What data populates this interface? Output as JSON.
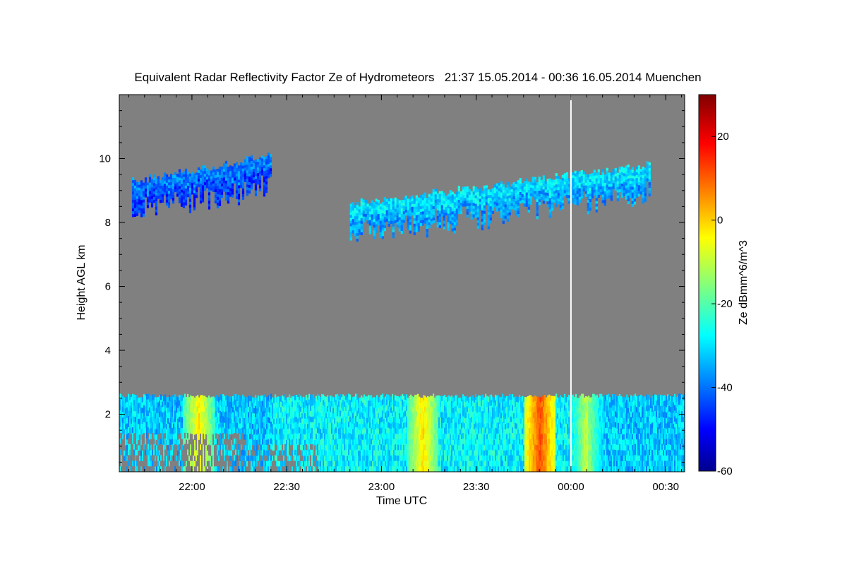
{
  "chart_data": {
    "type": "heatmap",
    "title": "Equivalent Radar Reflectivity Factor Ze of Hydrometeors   21:37 15.05.2014 - 00:36 16.05.2014 Muenchen",
    "xlabel": "Time UTC",
    "ylabel": "Height AGL km",
    "colorbar_label": "Ze dBmm^6/m^3",
    "x_range_minutes": [
      -143,
      36
    ],
    "y_range_km": [
      0.2,
      12.0
    ],
    "x_ticks": [
      {
        "minutes": -120,
        "label": "22:00"
      },
      {
        "minutes": -90,
        "label": "22:30"
      },
      {
        "minutes": -60,
        "label": "23:00"
      },
      {
        "minutes": -30,
        "label": "23:30"
      },
      {
        "minutes": 0,
        "label": "00:00"
      },
      {
        "minutes": 30,
        "label": "00:30"
      }
    ],
    "y_ticks": [
      {
        "km": 2,
        "label": "2"
      },
      {
        "km": 4,
        "label": "4"
      },
      {
        "km": 6,
        "label": "6"
      },
      {
        "km": 8,
        "label": "8"
      },
      {
        "km": 10,
        "label": "10"
      }
    ],
    "colorbar_range": [
      -60,
      30
    ],
    "colorbar_ticks": [
      {
        "value": -60,
        "label": "-60"
      },
      {
        "value": -40,
        "label": "-40"
      },
      {
        "value": -20,
        "label": "-20"
      },
      {
        "value": 0,
        "label": "0"
      },
      {
        "value": 20,
        "label": "20"
      }
    ],
    "background_color": "#808080",
    "day_boundary_minutes": 0,
    "boundary_layer": {
      "t_start": -143,
      "t_end": 36,
      "top_km": 2.6,
      "bottom_km": 0.2
    },
    "cloud_regions": [
      {
        "name": "high-cloud-early",
        "t_start": -139,
        "t_end": -95,
        "bottom_km": 8.3,
        "top_km": 10.1,
        "ze": -42
      },
      {
        "name": "high-cloud-main",
        "t_start": -70,
        "t_end": 25,
        "bottom_km": 7.1,
        "top_km": 9.8,
        "ze": -33
      }
    ],
    "hot_spots": [
      {
        "t": -118,
        "ze": -5
      },
      {
        "t": -47,
        "ze": -8
      },
      {
        "t": -10,
        "ze": 5
      },
      {
        "t": 5,
        "ze": -15
      }
    ]
  }
}
